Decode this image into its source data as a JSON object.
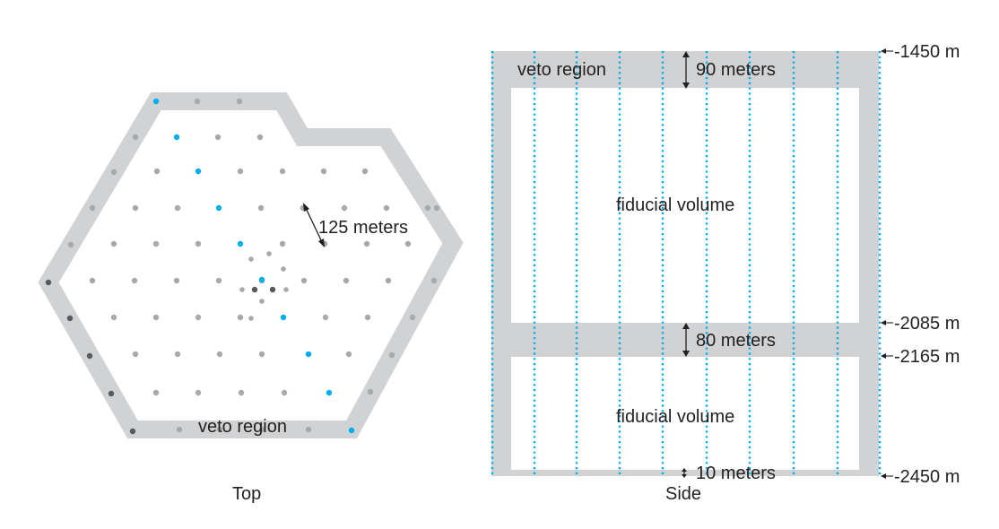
{
  "colors": {
    "veto_band": "#d0d2d3",
    "string_gray": "#a7a9ac",
    "string_dark": "#58595b",
    "string_blue": "#00aeef",
    "text": "#231f20"
  },
  "top_view": {
    "title": "Top",
    "veto_label": "veto region",
    "spacing_label": "125 meters"
  },
  "side_view": {
    "title": "Side",
    "upper_veto_label": "veto region",
    "upper_veto_thickness": "90 meters",
    "fiducial_upper_label": "fiducial volume",
    "middle_veto_thickness": "80 meters",
    "fiducial_lower_label": "fiducial volume",
    "side_bottom_thickness": "10 meters",
    "depths": [
      {
        "label": "-1450 m"
      },
      {
        "label": "-2085 m"
      },
      {
        "label": "-2165 m"
      },
      {
        "label": "-2450 m"
      }
    ]
  }
}
